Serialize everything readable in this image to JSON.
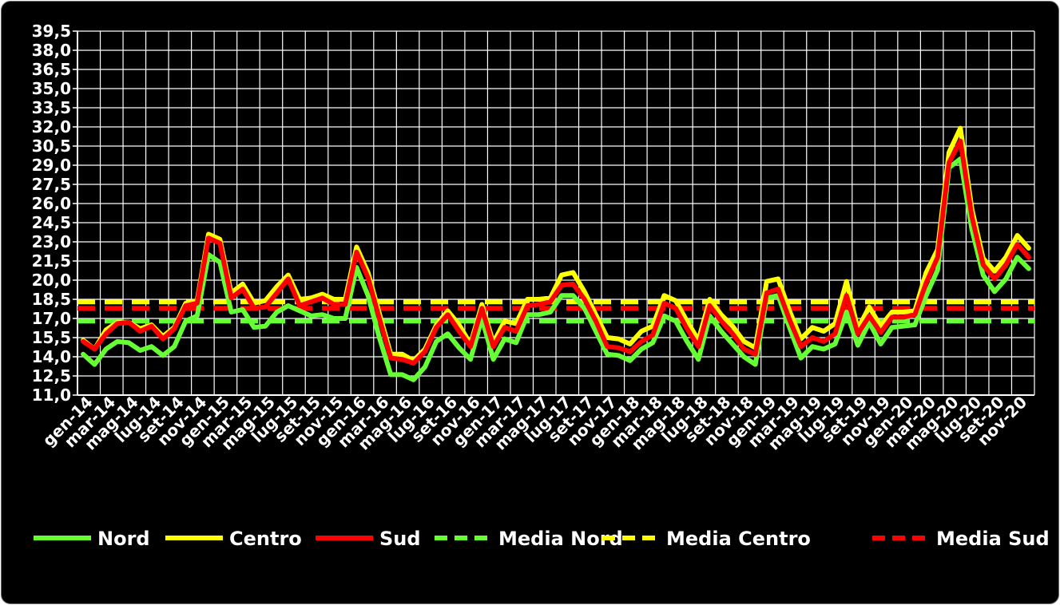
{
  "chart_data": {
    "type": "line",
    "title": "",
    "xlabel": "",
    "ylabel": "",
    "ylim": [
      11.0,
      39.5
    ],
    "y_ticks": [
      "11,0",
      "12,5",
      "14,0",
      "15,5",
      "17,0",
      "18,5",
      "20,0",
      "21,5",
      "23,0",
      "24,5",
      "26,0",
      "27,5",
      "29,0",
      "30,5",
      "32,0",
      "33,5",
      "35,0",
      "36,5",
      "38,0",
      "39,5"
    ],
    "grid": true,
    "background": "#000000",
    "legend_position": "bottom",
    "x_tick_labels": [
      "gen-14",
      "mar-14",
      "mag-14",
      "lug-14",
      "set-14",
      "nov-14",
      "gen-15",
      "mar-15",
      "mag-15",
      "lug-15",
      "set-15",
      "nov-15",
      "gen-16",
      "mar-16",
      "mag-16",
      "lug-16",
      "set-16",
      "nov-16",
      "gen-17",
      "mar-17",
      "mag-17",
      "lug-17",
      "set-17",
      "nov-17",
      "gen-18",
      "mar-18",
      "mag-18",
      "lug-18",
      "set-18",
      "nov-18",
      "gen-19",
      "mar-19",
      "mag-19",
      "lug-19",
      "set-19",
      "nov-19",
      "gen-20",
      "mar-20",
      "mag-20",
      "lug-20",
      "set-20",
      "nov-20"
    ],
    "series": [
      {
        "name": "Nord",
        "color": "#66ff33",
        "dashed": false,
        "values": [
          14.2,
          13.4,
          14.6,
          15.2,
          15.1,
          14.5,
          14.8,
          14.1,
          14.8,
          16.8,
          17.2,
          22.0,
          21.4,
          17.5,
          17.7,
          16.3,
          16.4,
          17.5,
          18.0,
          17.6,
          17.2,
          17.3,
          17.0,
          17.0,
          21.0,
          18.8,
          15.5,
          12.6,
          12.6,
          12.2,
          13.2,
          15.2,
          15.8,
          14.7,
          13.8,
          17.0,
          13.8,
          15.4,
          15.1,
          17.3,
          17.3,
          17.5,
          18.8,
          18.8,
          17.8,
          16.0,
          14.2,
          14.1,
          13.7,
          14.6,
          15.1,
          17.2,
          16.8,
          15.2,
          13.8,
          17.2,
          16.0,
          15.0,
          14.0,
          13.4,
          18.6,
          18.8,
          16.3,
          13.9,
          14.8,
          14.6,
          15.0,
          17.5,
          14.9,
          16.7,
          15.0,
          16.3,
          16.4,
          16.5,
          18.8,
          20.8,
          28.8,
          29.5,
          24.0,
          20.4,
          19.1,
          20.1,
          21.8,
          20.9
        ]
      },
      {
        "name": "Centro",
        "color": "#ffff00",
        "dashed": false,
        "values": [
          15.3,
          14.6,
          16.1,
          16.7,
          16.7,
          16.2,
          16.5,
          15.6,
          16.3,
          18.2,
          18.4,
          23.6,
          23.2,
          19.0,
          19.7,
          18.2,
          18.4,
          19.5,
          20.4,
          18.5,
          18.6,
          18.9,
          18.5,
          18.5,
          22.6,
          20.6,
          17.4,
          14.2,
          14.2,
          13.7,
          14.6,
          16.5,
          17.6,
          16.5,
          15.0,
          18.1,
          15.1,
          16.8,
          16.6,
          18.5,
          18.5,
          18.6,
          20.4,
          20.6,
          19.1,
          17.3,
          15.5,
          15.4,
          15.0,
          16.0,
          16.4,
          18.8,
          18.4,
          16.8,
          15.3,
          18.5,
          17.3,
          16.4,
          15.2,
          14.7,
          19.9,
          20.1,
          17.6,
          15.4,
          16.3,
          16.0,
          16.6,
          19.9,
          16.2,
          17.9,
          16.4,
          17.5,
          17.5,
          17.6,
          20.6,
          22.4,
          30.0,
          31.9,
          25.6,
          21.7,
          20.7,
          21.8,
          23.5,
          22.5
        ]
      },
      {
        "name": "Sud",
        "color": "#ff0000",
        "dashed": false,
        "values": [
          15.2,
          14.6,
          15.8,
          16.6,
          16.7,
          16.0,
          16.4,
          15.4,
          16.2,
          18.0,
          18.2,
          23.3,
          22.9,
          18.6,
          19.3,
          17.8,
          17.9,
          19.0,
          20.1,
          18.0,
          18.3,
          18.6,
          18.1,
          18.1,
          22.2,
          20.2,
          17.0,
          13.9,
          13.8,
          13.5,
          14.4,
          16.3,
          17.3,
          16.0,
          14.8,
          17.8,
          14.8,
          16.3,
          16.0,
          18.0,
          18.1,
          18.3,
          19.6,
          19.7,
          18.5,
          16.8,
          14.8,
          14.7,
          14.4,
          15.2,
          15.7,
          18.2,
          17.8,
          16.2,
          14.8,
          18.0,
          16.8,
          15.8,
          14.6,
          14.2,
          19.0,
          19.3,
          16.9,
          14.8,
          15.5,
          15.2,
          15.8,
          18.8,
          15.8,
          17.2,
          15.9,
          17.1,
          17.1,
          17.3,
          19.8,
          21.8,
          29.2,
          30.9,
          25.0,
          21.2,
          20.1,
          21.2,
          22.8,
          21.8
        ]
      },
      {
        "name": "Media Nord",
        "color": "#66ff33",
        "dashed": true,
        "mean": 16.8
      },
      {
        "name": "Media Centro",
        "color": "#ffff00",
        "dashed": true,
        "mean": 18.3
      },
      {
        "name": "Media Sud",
        "color": "#ff0000",
        "dashed": true,
        "mean": 17.8
      }
    ]
  }
}
